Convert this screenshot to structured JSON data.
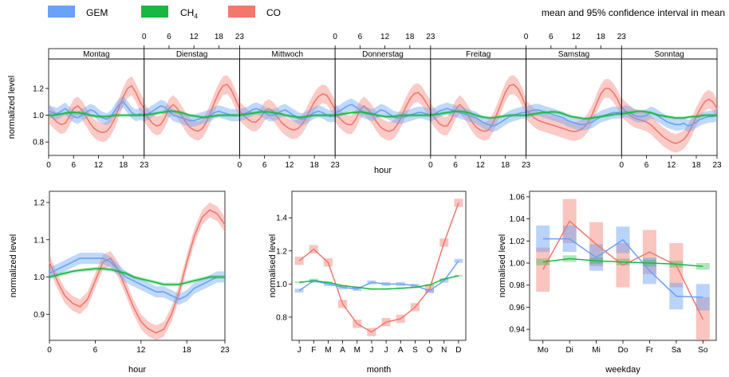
{
  "legend": {
    "entries": [
      {
        "name": "GEM",
        "color": "#6aa2f5"
      },
      {
        "name": "CH",
        "sub": "4",
        "color": "#19b841"
      },
      {
        "name": "CO",
        "color": "#f4776b"
      }
    ],
    "note": "mean and 95% confidence interval in mean"
  },
  "colors": {
    "GEM": "#6aa2f5",
    "CH4": "#19b841",
    "CO": "#f4776b"
  },
  "chart_data": [
    {
      "type": "line",
      "panel": "hour-by-weekday",
      "xlabel": "hour",
      "ylabel": "normalized level",
      "ylim": [
        0.7,
        1.42
      ],
      "yticks": [
        0.8,
        1.0,
        1.2
      ],
      "xticks": [
        0,
        6,
        12,
        18,
        23
      ],
      "strips": [
        "Montag",
        "Dienstag",
        "Mittwoch",
        "Donnerstag",
        "Freitag",
        "Samstag",
        "Sonntag"
      ],
      "series": [
        {
          "name": "GEM",
          "ci": 0.045,
          "values": [
            [
              1.03,
              1.02,
              1.01,
              1.03,
              1.05,
              1.02,
              0.99,
              0.98,
              1.0,
              1.02,
              1.04,
              1.03,
              1.0,
              0.98,
              0.97,
              0.99,
              1.04,
              1.08,
              1.1,
              1.06,
              1.02,
              1.0,
              1.01,
              1.0
            ],
            [
              1.0,
              1.01,
              1.03,
              1.05,
              1.07,
              1.06,
              1.03,
              1.0,
              0.99,
              0.98,
              0.97,
              0.96,
              0.96,
              0.97,
              0.98,
              0.99,
              1.0,
              1.02,
              1.03,
              1.02,
              1.01,
              1.0,
              1.0,
              1.0
            ],
            [
              1.0,
              1.01,
              1.02,
              1.04,
              1.05,
              1.04,
              1.02,
              1.0,
              1.0,
              1.01,
              1.03,
              1.04,
              1.02,
              1.0,
              0.98,
              0.97,
              0.98,
              1.0,
              1.02,
              1.03,
              1.02,
              1.0,
              0.99,
              1.0
            ],
            [
              1.02,
              1.03,
              1.05,
              1.07,
              1.08,
              1.06,
              1.04,
              1.02,
              1.01,
              1.0,
              1.02,
              1.04,
              1.03,
              1.01,
              0.99,
              0.98,
              0.98,
              0.99,
              1.0,
              1.01,
              1.02,
              1.02,
              1.01,
              1.0
            ],
            [
              1.0,
              1.01,
              1.03,
              1.04,
              1.05,
              1.04,
              1.03,
              1.02,
              1.01,
              1.0,
              0.99,
              0.98,
              0.96,
              0.94,
              0.93,
              0.92,
              0.93,
              0.95,
              0.97,
              0.99,
              1.0,
              1.01,
              1.02,
              1.02
            ],
            [
              1.02,
              1.03,
              1.04,
              1.04,
              1.03,
              1.02,
              1.01,
              1.0,
              0.99,
              0.98,
              0.96,
              0.95,
              0.94,
              0.93,
              0.93,
              0.94,
              0.95,
              0.97,
              0.99,
              1.0,
              1.01,
              1.02,
              1.02,
              1.02
            ],
            [
              1.02,
              1.03,
              1.02,
              1.0,
              0.99,
              0.99,
              1.0,
              1.02,
              1.01,
              0.99,
              0.97,
              0.95,
              0.94,
              0.93,
              0.93,
              0.94,
              0.92,
              0.93,
              0.95,
              0.97,
              0.98,
              0.99,
              0.99,
              1.0
            ]
          ]
        },
        {
          "name": "CH4",
          "ci": 0.012,
          "values": [
            [
              1.0,
              1.0,
              1.005,
              1.01,
              1.015,
              1.02,
              1.02,
              1.02,
              1.015,
              1.01,
              1.0,
              0.995,
              0.99,
              0.99,
              0.99,
              0.995,
              1.0,
              1.0,
              1.0,
              1.0,
              1.0,
              1.0,
              1.0,
              1.0
            ],
            [
              1.0,
              1.005,
              1.01,
              1.015,
              1.02,
              1.025,
              1.03,
              1.03,
              1.025,
              1.02,
              1.01,
              1.0,
              0.995,
              0.99,
              0.985,
              0.985,
              0.99,
              0.995,
              1.0,
              1.0,
              1.0,
              1.0,
              1.0,
              1.0
            ],
            [
              1.0,
              1.005,
              1.01,
              1.015,
              1.02,
              1.025,
              1.025,
              1.025,
              1.02,
              1.015,
              1.01,
              1.0,
              0.995,
              0.99,
              0.985,
              0.985,
              0.99,
              0.995,
              1.0,
              1.0,
              1.0,
              1.0,
              1.0,
              1.0
            ],
            [
              1.0,
              1.005,
              1.01,
              1.015,
              1.02,
              1.02,
              1.025,
              1.02,
              1.015,
              1.01,
              1.0,
              0.995,
              0.99,
              0.99,
              0.99,
              0.995,
              1.0,
              1.0,
              1.0,
              1.0,
              1.0,
              1.0,
              1.0,
              1.0
            ],
            [
              1.0,
              1.005,
              1.01,
              1.015,
              1.02,
              1.025,
              1.03,
              1.03,
              1.025,
              1.02,
              1.01,
              1.0,
              0.99,
              0.985,
              0.98,
              0.98,
              0.985,
              0.99,
              0.995,
              1.0,
              1.0,
              1.0,
              1.0,
              1.0
            ],
            [
              1.0,
              1.005,
              1.01,
              1.015,
              1.02,
              1.02,
              1.025,
              1.025,
              1.02,
              1.01,
              1.0,
              0.99,
              0.985,
              0.98,
              0.975,
              0.975,
              0.98,
              0.985,
              0.99,
              0.995,
              1.0,
              1.005,
              1.01,
              1.01
            ],
            [
              1.01,
              1.015,
              1.02,
              1.025,
              1.03,
              1.03,
              1.025,
              1.02,
              1.01,
              1.0,
              0.995,
              0.99,
              0.985,
              0.98,
              0.98,
              0.98,
              0.985,
              0.99,
              0.99,
              0.995,
              1.0,
              1.0,
              1.0,
              1.0
            ]
          ]
        },
        {
          "name": "CO",
          "ci": 0.07,
          "values": [
            [
              1.01,
              0.98,
              0.95,
              0.93,
              0.94,
              0.99,
              1.05,
              1.07,
              1.04,
              0.99,
              0.94,
              0.9,
              0.88,
              0.87,
              0.88,
              0.92,
              0.98,
              1.06,
              1.14,
              1.2,
              1.22,
              1.17,
              1.1,
              1.05
            ],
            [
              1.02,
              0.98,
              0.94,
              0.92,
              0.93,
              0.98,
              1.05,
              1.08,
              1.05,
              1.0,
              0.95,
              0.91,
              0.89,
              0.88,
              0.9,
              0.95,
              1.02,
              1.1,
              1.17,
              1.22,
              1.23,
              1.19,
              1.12,
              1.05
            ],
            [
              1.03,
              1.0,
              0.97,
              0.95,
              0.95,
              0.98,
              1.03,
              1.05,
              1.03,
              0.99,
              0.95,
              0.92,
              0.9,
              0.89,
              0.9,
              0.93,
              0.98,
              1.04,
              1.1,
              1.14,
              1.16,
              1.15,
              1.1,
              1.04
            ],
            [
              1.02,
              0.98,
              0.95,
              0.93,
              0.93,
              0.97,
              1.04,
              1.07,
              1.04,
              1.0,
              0.95,
              0.91,
              0.89,
              0.88,
              0.89,
              0.93,
              0.99,
              1.06,
              1.12,
              1.16,
              1.17,
              1.14,
              1.09,
              1.04
            ],
            [
              1.02,
              0.98,
              0.94,
              0.92,
              0.92,
              0.97,
              1.04,
              1.08,
              1.05,
              1.0,
              0.95,
              0.91,
              0.89,
              0.88,
              0.89,
              0.94,
              1.01,
              1.09,
              1.17,
              1.22,
              1.23,
              1.2,
              1.14,
              1.06
            ],
            [
              1.04,
              1.01,
              0.98,
              0.96,
              0.95,
              0.94,
              0.93,
              0.92,
              0.91,
              0.9,
              0.89,
              0.88,
              0.88,
              0.89,
              0.91,
              0.95,
              1.01,
              1.09,
              1.16,
              1.2,
              1.2,
              1.17,
              1.12,
              1.05
            ],
            [
              1.06,
              1.03,
              1.0,
              0.98,
              0.97,
              0.96,
              0.95,
              0.93,
              0.9,
              0.87,
              0.84,
              0.82,
              0.8,
              0.79,
              0.8,
              0.82,
              0.86,
              0.92,
              0.99,
              1.05,
              1.1,
              1.12,
              1.1,
              1.05
            ]
          ]
        }
      ]
    },
    {
      "type": "line",
      "panel": "hour",
      "xlabel": "hour",
      "ylabel": "normalized level",
      "ylim": [
        0.83,
        1.23
      ],
      "yticks": [
        0.9,
        1.0,
        1.1,
        1.2
      ],
      "xticks": [
        0,
        6,
        12,
        18,
        23
      ],
      "series": [
        {
          "name": "GEM",
          "ci": 0.015,
          "values": [
            1.01,
            1.02,
            1.03,
            1.04,
            1.05,
            1.05,
            1.05,
            1.05,
            1.04,
            1.02,
            1.0,
            0.99,
            0.98,
            0.97,
            0.96,
            0.96,
            0.95,
            0.94,
            0.95,
            0.97,
            0.98,
            0.99,
            1.0,
            1.0
          ]
        },
        {
          "name": "CH4",
          "ci": 0.005,
          "values": [
            1.0,
            1.005,
            1.01,
            1.015,
            1.018,
            1.02,
            1.022,
            1.022,
            1.02,
            1.015,
            1.01,
            1.0,
            0.995,
            0.99,
            0.985,
            0.98,
            0.98,
            0.98,
            0.985,
            0.99,
            0.995,
            1.0,
            1.0,
            1.0
          ]
        },
        {
          "name": "CO",
          "ci": 0.02,
          "values": [
            1.04,
            0.99,
            0.95,
            0.93,
            0.92,
            0.94,
            0.99,
            1.04,
            1.05,
            1.02,
            0.97,
            0.92,
            0.88,
            0.86,
            0.85,
            0.86,
            0.9,
            0.96,
            1.04,
            1.11,
            1.16,
            1.18,
            1.17,
            1.14
          ]
        }
      ]
    },
    {
      "type": "line",
      "panel": "month",
      "xlabel": "month",
      "ylabel": "normalised level",
      "ylim": [
        0.66,
        1.56
      ],
      "yticks": [
        0.8,
        1.0,
        1.2,
        1.4
      ],
      "categories": [
        "J",
        "F",
        "M",
        "A",
        "M",
        "J",
        "J",
        "A",
        "S",
        "O",
        "N",
        "D"
      ],
      "series": [
        {
          "name": "GEM",
          "ci": 0.012,
          "values": [
            0.96,
            1.02,
            1.0,
            0.98,
            0.97,
            1.01,
            1.0,
            1.0,
            0.99,
            0.96,
            1.02,
            1.14
          ]
        },
        {
          "name": "CH4",
          "ci": 0.005,
          "values": [
            1.01,
            1.02,
            1.01,
            0.99,
            0.98,
            0.97,
            0.97,
            0.975,
            0.98,
            0.995,
            1.03,
            1.05
          ]
        },
        {
          "name": "CO",
          "ci": 0.025,
          "values": [
            1.14,
            1.21,
            1.13,
            0.88,
            0.76,
            0.71,
            0.77,
            0.79,
            0.86,
            0.97,
            1.25,
            1.49
          ]
        }
      ]
    },
    {
      "type": "line",
      "panel": "weekday",
      "xlabel": "weekday",
      "ylabel": "normalised level",
      "ylim": [
        0.93,
        1.065
      ],
      "yticks": [
        0.94,
        0.96,
        0.98,
        1.0,
        1.02,
        1.04,
        1.06
      ],
      "categories": [
        "Mo",
        "Di",
        "Mi",
        "Do",
        "Fr",
        "Sa",
        "So"
      ],
      "series": [
        {
          "name": "GEM",
          "ci": 0.012,
          "values": [
            1.022,
            1.022,
            1.005,
            1.021,
            0.993,
            0.97,
            0.969
          ]
        },
        {
          "name": "CH4",
          "ci": 0.003,
          "values": [
            1.001,
            1.004,
            1.002,
            1.001,
            1.0,
            0.999,
            0.997
          ]
        },
        {
          "name": "CO",
          "ci": 0.02,
          "values": [
            0.994,
            1.038,
            1.017,
            0.998,
            1.01,
            0.998,
            0.949
          ]
        }
      ]
    }
  ]
}
